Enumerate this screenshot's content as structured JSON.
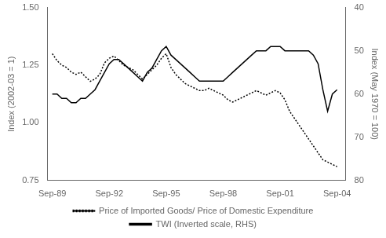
{
  "chart_data": {
    "type": "line",
    "x": [
      1989.75,
      1990.0,
      1990.25,
      1990.5,
      1990.75,
      1991.0,
      1991.25,
      1991.5,
      1991.75,
      1992.0,
      1992.25,
      1992.5,
      1992.75,
      1993.0,
      1993.25,
      1993.5,
      1993.75,
      1994.0,
      1994.25,
      1994.5,
      1994.75,
      1995.0,
      1995.25,
      1995.5,
      1995.75,
      1996.0,
      1996.25,
      1996.5,
      1996.75,
      1997.0,
      1997.25,
      1997.5,
      1997.75,
      1998.0,
      1998.25,
      1998.5,
      1998.75,
      1999.0,
      1999.25,
      1999.5,
      1999.75,
      2000.0,
      2000.25,
      2000.5,
      2000.75,
      2001.0,
      2001.25,
      2001.5,
      2001.75,
      2002.0,
      2002.25,
      2002.5,
      2002.75,
      2003.0,
      2003.25,
      2003.5,
      2003.75,
      2004.0,
      2004.25,
      2004.5,
      2004.75
    ],
    "series": [
      {
        "name": "Price of Imported Goods/ Price of Domestic Expenditure",
        "color": "#000000",
        "line_style": "dotted",
        "values": [
          1.3,
          1.27,
          1.25,
          1.24,
          1.22,
          1.21,
          1.22,
          1.2,
          1.18,
          1.19,
          1.21,
          1.26,
          1.28,
          1.29,
          1.27,
          1.25,
          1.24,
          1.23,
          1.21,
          1.19,
          1.21,
          1.23,
          1.25,
          1.28,
          1.3,
          1.24,
          1.21,
          1.19,
          1.17,
          1.16,
          1.15,
          1.14,
          1.14,
          1.15,
          1.14,
          1.13,
          1.12,
          1.1,
          1.09,
          1.1,
          1.11,
          1.12,
          1.13,
          1.14,
          1.13,
          1.12,
          1.13,
          1.14,
          1.13,
          1.1,
          1.05,
          1.02,
          0.99,
          0.96,
          0.93,
          0.9,
          0.87,
          0.84,
          0.83,
          0.82,
          0.81
        ]
      },
      {
        "name": "TWI (Inverted scale, RHS)",
        "color": "#000000",
        "line_style": "solid",
        "axis": "y2",
        "values": [
          60,
          60,
          61,
          61,
          62,
          62,
          61,
          61,
          60,
          59,
          57,
          55,
          53,
          52,
          52,
          53,
          54,
          55,
          56,
          57,
          55,
          54,
          52,
          50,
          49,
          51,
          52,
          53,
          54,
          55,
          56,
          57,
          57,
          57,
          57,
          57,
          57,
          56,
          55,
          54,
          53,
          52,
          51,
          50,
          50,
          50,
          49,
          49,
          49,
          50,
          50,
          50,
          50,
          50,
          50,
          51,
          53,
          59,
          64,
          60,
          59
        ]
      }
    ],
    "xlim": [
      1989.5,
      2005.2
    ],
    "xticks": [
      {
        "value": 1989.75,
        "label": "Sep-89"
      },
      {
        "value": 1992.75,
        "label": "Sep-92"
      },
      {
        "value": 1995.75,
        "label": "Sep-95"
      },
      {
        "value": 1998.75,
        "label": "Sep-98"
      },
      {
        "value": 2001.75,
        "label": "Sep-01"
      },
      {
        "value": 2004.75,
        "label": "Sep-04"
      }
    ],
    "ylabel": "Index (2002-03 = 1)",
    "ylim": [
      0.75,
      1.5
    ],
    "yticks": [
      0.75,
      {
        "value": 1.0,
        "label": "1.00"
      },
      1.25,
      {
        "value": 1.5,
        "label": "1.50"
      }
    ],
    "y2label": "Index (May 1970 = 100)",
    "y2lim": [
      80,
      40
    ],
    "y2ticks": [
      40,
      50,
      60,
      70,
      80
    ],
    "grid": false,
    "legend": "bottom"
  }
}
